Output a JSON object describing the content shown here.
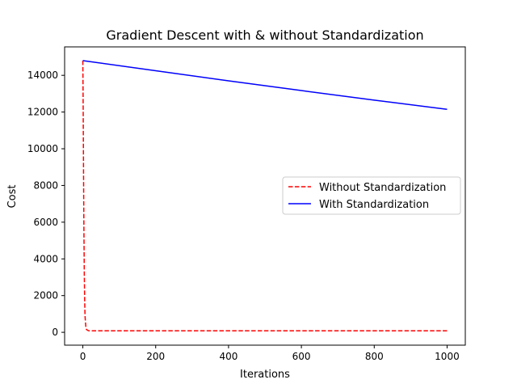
{
  "chart_data": {
    "type": "line",
    "title": "Gradient Descent with & without Standardization",
    "xlabel": "Iterations",
    "ylabel": "Cost",
    "xlim": [
      -50,
      1050
    ],
    "ylim": [
      -700,
      15550
    ],
    "xticks": [
      0,
      200,
      400,
      600,
      800,
      1000
    ],
    "yticks": [
      0,
      2000,
      4000,
      6000,
      8000,
      10000,
      12000,
      14000
    ],
    "grid": false,
    "legend_position": "center-right",
    "series": [
      {
        "name": "Without Standardization",
        "color": "#ff0000",
        "linestyle": "dashed",
        "x": [
          0,
          1,
          2,
          3,
          4,
          5,
          6,
          8,
          10,
          15,
          20,
          50,
          100,
          200,
          400,
          600,
          800,
          1000
        ],
        "y": [
          14800,
          12000,
          8500,
          5500,
          3200,
          1800,
          900,
          350,
          150,
          90,
          80,
          80,
          80,
          80,
          80,
          80,
          80,
          80
        ]
      },
      {
        "name": "With Standardization",
        "color": "#0000ff",
        "linestyle": "solid",
        "x": [
          0,
          200,
          400,
          600,
          800,
          1000
        ],
        "y": [
          14800,
          14250,
          13700,
          13170,
          12650,
          12150
        ]
      }
    ]
  }
}
